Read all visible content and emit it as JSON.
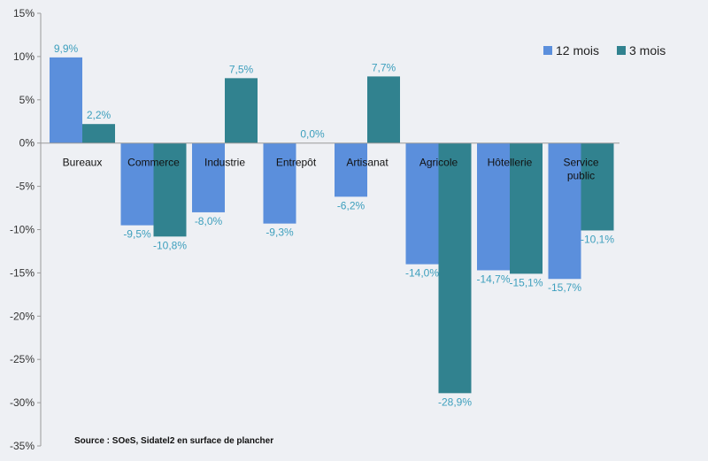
{
  "chart_data": {
    "type": "bar",
    "categories": [
      [
        "Bureaux"
      ],
      [
        "Commerce"
      ],
      [
        "Industrie"
      ],
      [
        "Entrepôt"
      ],
      [
        "Artisanat"
      ],
      [
        "Agricole"
      ],
      [
        "Hôtellerie"
      ],
      [
        "Service",
        "public"
      ]
    ],
    "series": [
      {
        "name": "12 mois",
        "color": "#5b8fdc",
        "values": [
          9.9,
          -9.5,
          -8.0,
          -9.3,
          -6.2,
          -14.0,
          -14.7,
          -15.7
        ],
        "labels": [
          "9,9%",
          "-9,5%",
          "-8,0%",
          "-9,3%",
          "-6,2%",
          "-14,0%",
          "-14,7%",
          "-15,7%"
        ]
      },
      {
        "name": "3 mois",
        "color": "#31828f",
        "values": [
          2.2,
          -10.8,
          7.5,
          0.0,
          7.7,
          -28.9,
          -15.1,
          -10.1
        ],
        "labels": [
          "2,2%",
          "-10,8%",
          "7,5%",
          "0,0%",
          "7,7%",
          "-28,9%",
          "-15,1%",
          "-10,1%"
        ]
      }
    ],
    "ylim": [
      -35,
      15
    ],
    "yticks": [
      15,
      10,
      5,
      0,
      -5,
      -10,
      -15,
      -20,
      -25,
      -30,
      -35
    ],
    "ytick_labels": [
      "15%",
      "10%",
      "5%",
      "0%",
      "-5%",
      "-10%",
      "-15%",
      "-20%",
      "-25%",
      "-30%",
      "-35%"
    ],
    "label_color": "#3d9fbd",
    "legend_position": "top-right",
    "grid": false,
    "source": "Source : SOeS, Sidatel2 en surface de plancher"
  }
}
